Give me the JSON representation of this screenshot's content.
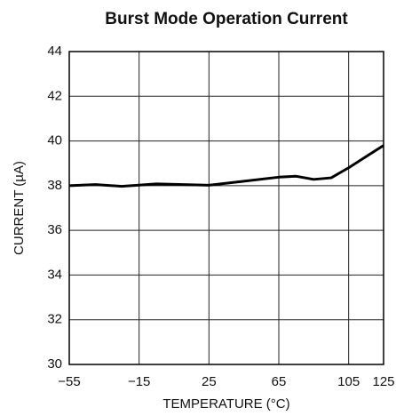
{
  "chart_data": {
    "type": "line",
    "title": "Burst Mode Operation Current",
    "xlabel": "TEMPERATURE (°C)",
    "ylabel": "CURRENT (µA)",
    "x": [
      -55,
      -40,
      -25,
      -5,
      25,
      45,
      65,
      75,
      85,
      95,
      105,
      115,
      125
    ],
    "series": [
      {
        "name": null,
        "color": "#000000",
        "values": [
          38.0,
          38.05,
          37.97,
          38.08,
          38.02,
          38.2,
          38.38,
          38.42,
          38.28,
          38.35,
          38.8,
          39.3,
          39.8
        ]
      }
    ],
    "xlim": [
      -55,
      125
    ],
    "xticks": [
      {
        "value": -55,
        "label": "−55"
      },
      {
        "value": -15,
        "label": "−15"
      },
      25,
      65,
      105,
      125
    ],
    "ylim": [
      30,
      44
    ],
    "yticks": [
      30,
      32,
      34,
      36,
      38,
      40,
      42,
      44
    ],
    "grid": true
  }
}
